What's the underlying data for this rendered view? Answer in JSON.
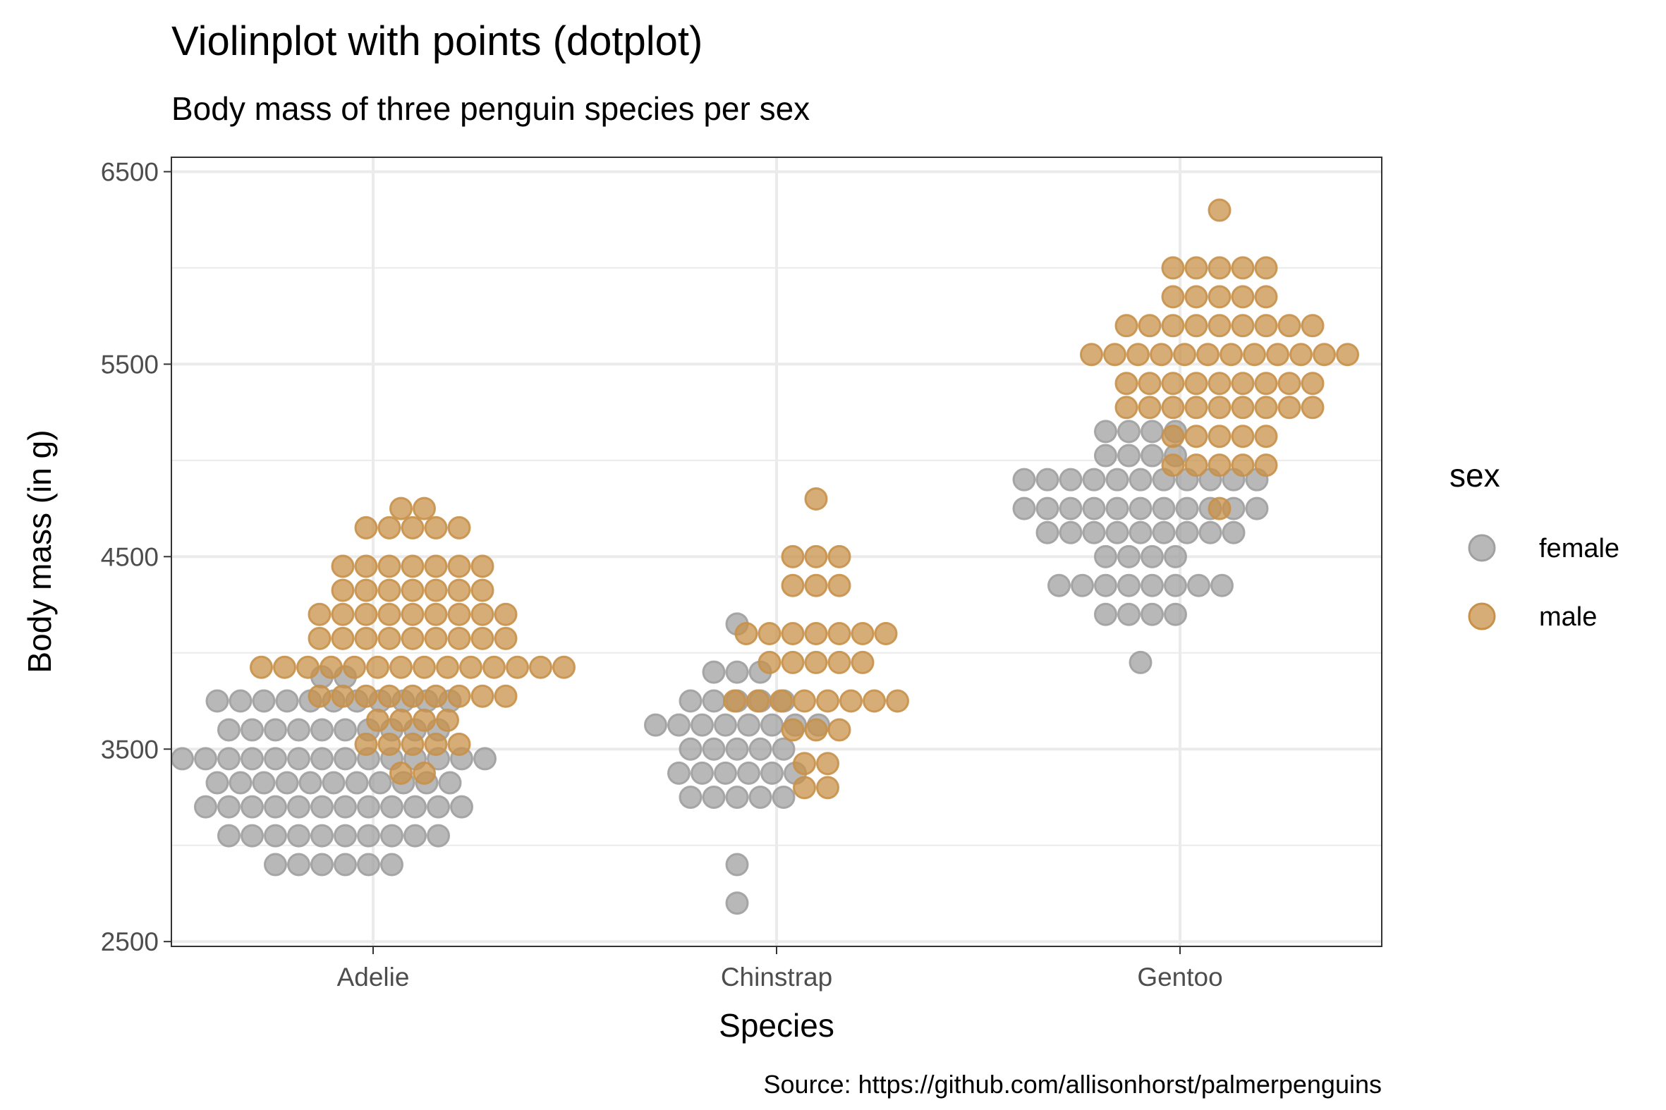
{
  "chart_data": {
    "type": "scatter",
    "subtype": "dotplot",
    "title": "Violinplot with points (dotplot)",
    "subtitle": "Body mass of three penguin species per sex",
    "xlabel": "Species",
    "ylabel": "Body mass (in g)",
    "caption": "Source: https://github.com/allisonhorst/palmerpenguins",
    "categories": [
      "Adelie",
      "Chinstrap",
      "Gentoo"
    ],
    "ylim": [
      2475,
      6575
    ],
    "yticks": [
      2500,
      3500,
      4500,
      5500,
      6500
    ],
    "grid": true,
    "legend": {
      "title": "sex",
      "position": "right",
      "entries": [
        {
          "label": "female",
          "color": "#A0A0A0"
        },
        {
          "label": "male",
          "color": "#C8914A"
        }
      ]
    },
    "colors": {
      "female": "#A0A0A0",
      "male": "#C8914A",
      "grid": "#EBEBEB",
      "axis_text": "#4D4D4D"
    },
    "series": [
      {
        "name": "female",
        "color": "#A0A0A0",
        "bins": [
          {
            "species": "Adelie",
            "y": 2900,
            "count": 6
          },
          {
            "species": "Adelie",
            "y": 3050,
            "count": 10
          },
          {
            "species": "Adelie",
            "y": 3200,
            "count": 12
          },
          {
            "species": "Adelie",
            "y": 3325,
            "count": 11
          },
          {
            "species": "Adelie",
            "y": 3450,
            "count": 14
          },
          {
            "species": "Adelie",
            "y": 3600,
            "count": 10
          },
          {
            "species": "Adelie",
            "y": 3750,
            "count": 11
          },
          {
            "species": "Adelie",
            "y": 3875,
            "count": 2
          },
          {
            "species": "Chinstrap",
            "y": 2700,
            "count": 1
          },
          {
            "species": "Chinstrap",
            "y": 2900,
            "count": 1
          },
          {
            "species": "Chinstrap",
            "y": 3250,
            "count": 5
          },
          {
            "species": "Chinstrap",
            "y": 3375,
            "count": 6
          },
          {
            "species": "Chinstrap",
            "y": 3500,
            "count": 5
          },
          {
            "species": "Chinstrap",
            "y": 3625,
            "count": 8
          },
          {
            "species": "Chinstrap",
            "y": 3750,
            "count": 5
          },
          {
            "species": "Chinstrap",
            "y": 3900,
            "count": 3
          },
          {
            "species": "Chinstrap",
            "y": 4150,
            "count": 1
          },
          {
            "species": "Gentoo",
            "y": 3950,
            "count": 1
          },
          {
            "species": "Gentoo",
            "y": 4200,
            "count": 4
          },
          {
            "species": "Gentoo",
            "y": 4350,
            "count": 8
          },
          {
            "species": "Gentoo",
            "y": 4500,
            "count": 4
          },
          {
            "species": "Gentoo",
            "y": 4625,
            "count": 9
          },
          {
            "species": "Gentoo",
            "y": 4750,
            "count": 11
          },
          {
            "species": "Gentoo",
            "y": 4900,
            "count": 11
          },
          {
            "species": "Gentoo",
            "y": 5025,
            "count": 4
          },
          {
            "species": "Gentoo",
            "y": 5150,
            "count": 4
          }
        ]
      },
      {
        "name": "male",
        "color": "#C8914A",
        "bins": [
          {
            "species": "Adelie",
            "y": 3375,
            "count": 2
          },
          {
            "species": "Adelie",
            "y": 3525,
            "count": 5
          },
          {
            "species": "Adelie",
            "y": 3650,
            "count": 4
          },
          {
            "species": "Adelie",
            "y": 3775,
            "count": 9
          },
          {
            "species": "Adelie",
            "y": 3925,
            "count": 14
          },
          {
            "species": "Adelie",
            "y": 4075,
            "count": 9
          },
          {
            "species": "Adelie",
            "y": 4200,
            "count": 9
          },
          {
            "species": "Adelie",
            "y": 4325,
            "count": 7
          },
          {
            "species": "Adelie",
            "y": 4450,
            "count": 7
          },
          {
            "species": "Adelie",
            "y": 4650,
            "count": 5
          },
          {
            "species": "Adelie",
            "y": 4750,
            "count": 2
          },
          {
            "species": "Chinstrap",
            "y": 3300,
            "count": 2
          },
          {
            "species": "Chinstrap",
            "y": 3425,
            "count": 2
          },
          {
            "species": "Chinstrap",
            "y": 3600,
            "count": 3
          },
          {
            "species": "Chinstrap",
            "y": 3750,
            "count": 8
          },
          {
            "species": "Chinstrap",
            "y": 3950,
            "count": 5
          },
          {
            "species": "Chinstrap",
            "y": 4100,
            "count": 7
          },
          {
            "species": "Chinstrap",
            "y": 4350,
            "count": 3
          },
          {
            "species": "Chinstrap",
            "y": 4500,
            "count": 3
          },
          {
            "species": "Chinstrap",
            "y": 4800,
            "count": 1
          },
          {
            "species": "Gentoo",
            "y": 4750,
            "count": 1
          },
          {
            "species": "Gentoo",
            "y": 4975,
            "count": 5
          },
          {
            "species": "Gentoo",
            "y": 5125,
            "count": 5
          },
          {
            "species": "Gentoo",
            "y": 5275,
            "count": 9
          },
          {
            "species": "Gentoo",
            "y": 5400,
            "count": 9
          },
          {
            "species": "Gentoo",
            "y": 5550,
            "count": 12
          },
          {
            "species": "Gentoo",
            "y": 5700,
            "count": 9
          },
          {
            "species": "Gentoo",
            "y": 5850,
            "count": 5
          },
          {
            "species": "Gentoo",
            "y": 6000,
            "count": 5
          },
          {
            "species": "Gentoo",
            "y": 6300,
            "count": 1
          }
        ]
      }
    ]
  }
}
